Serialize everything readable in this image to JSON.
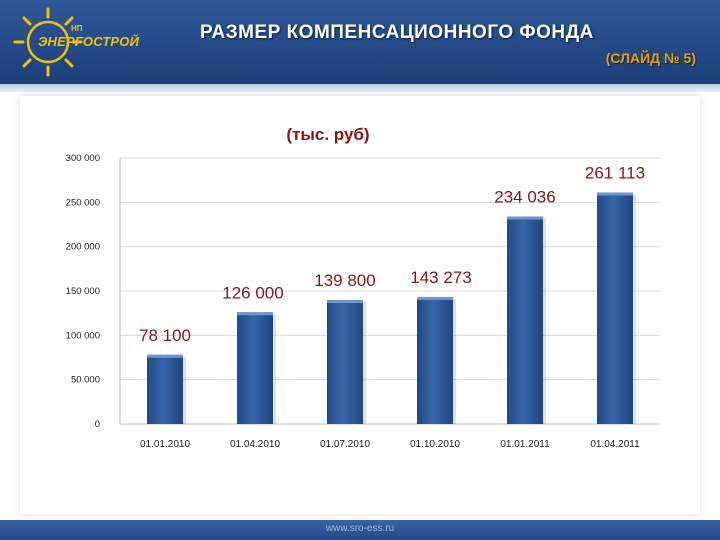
{
  "header": {
    "logo_text": "ЭНЕРГОСТРОЙ",
    "logo_small": "НП",
    "title": "РАЗМЕР КОМПЕНСАЦИОННОГО ФОНДА",
    "subtitle": "(СЛАЙД № 5)"
  },
  "footer": {
    "url": "www.sro-ess.ru"
  },
  "colors": {
    "header": "#2a5291",
    "bar": "#2f5a9a",
    "label": "#8a1414",
    "accent": "#e8a200"
  },
  "chart_data": {
    "type": "bar",
    "unit_label": "(тыс. руб)",
    "categories": [
      "01.01.2010",
      "01.04.2010",
      "01.07.2010",
      "01.10.2010",
      "01.01.2011",
      "01.04.2011"
    ],
    "values": [
      78100,
      126000,
      139800,
      143273,
      234036,
      261113
    ],
    "data_labels": [
      "78 100",
      "126 000",
      "139 800",
      "143 273",
      "234 036",
      "261 113"
    ],
    "y_ticks": [
      0,
      50000,
      100000,
      150000,
      200000,
      250000,
      300000
    ],
    "y_tick_labels": [
      "0",
      "50 000",
      "100 000",
      "150 000",
      "200 000",
      "250 000",
      "300 000"
    ],
    "ylim": [
      0,
      300000
    ],
    "grid": true,
    "legend": "none"
  }
}
